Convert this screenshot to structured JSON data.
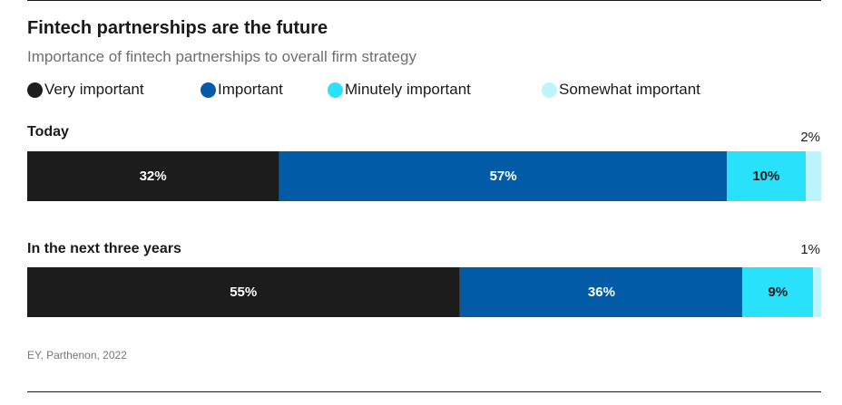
{
  "title": "Fintech partnerships are the future",
  "subtitle": "Importance of fintech partnerships to overall firm strategy",
  "source": "EY, Parthenon, 2022",
  "chart_data": {
    "type": "bar",
    "orientation": "horizontal-stacked-100",
    "title": "Fintech partnerships are the future",
    "subtitle": "Importance of fintech partnerships to overall firm strategy",
    "legend_position": "top",
    "categories": [
      "Today",
      "In the next three years"
    ],
    "series": [
      {
        "name": "Very important",
        "color": "#1c1c1c",
        "text_color": "#ffffff",
        "values": [
          32,
          55
        ],
        "labels": [
          "32%",
          "55%"
        ]
      },
      {
        "name": "Important",
        "color": "#015ba7",
        "text_color": "#ffffff",
        "values": [
          57,
          36
        ],
        "labels": [
          "57%",
          "36%"
        ]
      },
      {
        "name": "Minutely important",
        "color": "#2ae1fb",
        "text_color": "#1a1a1a",
        "values": [
          10,
          9
        ],
        "labels": [
          "10%",
          "9%"
        ]
      },
      {
        "name": "Somewhat important",
        "color": "#bdf5fd",
        "text_color": "#1a1a1a",
        "values": [
          2,
          1
        ],
        "labels": [
          "2%",
          "1%"
        ]
      }
    ]
  }
}
